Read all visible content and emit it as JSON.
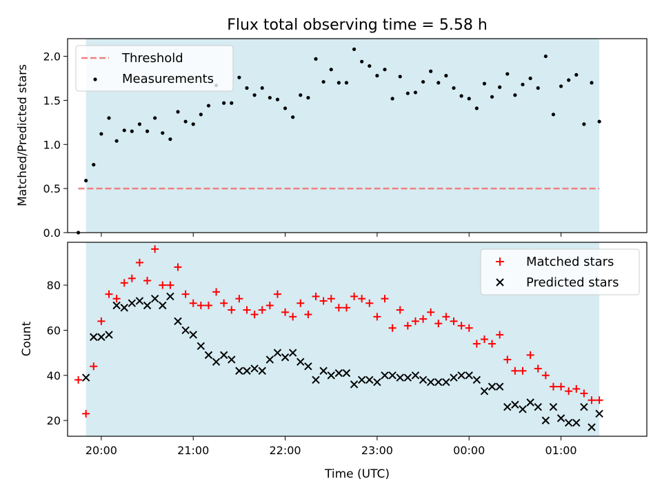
{
  "chart_data": [
    {
      "type": "scatter",
      "title": "Flux total observing time = 5.58 h",
      "ylabel": "Matched/Predicted stars",
      "xlabel": "",
      "xlim": [
        "19:38",
        "01:56"
      ],
      "ylim": [
        0,
        2.2
      ],
      "yticks": [
        0.0,
        0.5,
        1.0,
        1.5,
        2.0
      ],
      "ytick_labels": [
        "0.0",
        "0.5",
        "1.0",
        "1.5",
        "2.0"
      ],
      "xticks": [
        "20:00",
        "21:00",
        "22:00",
        "23:00",
        "00:00",
        "01:00"
      ],
      "shaded_span": [
        "19:50",
        "01:25"
      ],
      "shade_color": "#add8e6",
      "legend": {
        "position": "top-left",
        "entries": [
          "Threshold",
          "Measurements"
        ]
      },
      "threshold": {
        "name": "Threshold",
        "value": 0.5,
        "x_range": [
          "19:45",
          "01:25"
        ],
        "color": "#f08080",
        "style": "dashed"
      },
      "series": [
        {
          "name": "Measurements",
          "marker": "dot",
          "color": "#000000",
          "x": [
            "19:45",
            "19:50",
            "19:55",
            "20:00",
            "20:05",
            "20:10",
            "20:15",
            "20:20",
            "20:25",
            "20:30",
            "20:35",
            "20:40",
            "20:45",
            "20:50",
            "20:55",
            "21:00",
            "21:05",
            "21:10",
            "21:15",
            "21:20",
            "21:25",
            "21:30",
            "21:35",
            "21:40",
            "21:45",
            "21:50",
            "21:55",
            "22:00",
            "22:05",
            "22:10",
            "22:15",
            "22:20",
            "22:25",
            "22:30",
            "22:35",
            "22:40",
            "22:45",
            "22:50",
            "22:55",
            "23:00",
            "23:05",
            "23:10",
            "23:15",
            "23:20",
            "23:25",
            "23:30",
            "23:35",
            "23:40",
            "23:45",
            "23:50",
            "23:55",
            "00:00",
            "00:05",
            "00:10",
            "00:15",
            "00:20",
            "00:25",
            "00:30",
            "00:35",
            "00:40",
            "00:45",
            "00:50",
            "00:55",
            "01:00",
            "01:05",
            "01:10",
            "01:15",
            "01:20",
            "01:25"
          ],
          "y": [
            0.0,
            0.59,
            0.77,
            1.12,
            1.3,
            1.04,
            1.16,
            1.15,
            1.23,
            1.15,
            1.3,
            1.13,
            1.06,
            1.37,
            1.26,
            1.23,
            1.34,
            1.44,
            1.67,
            1.47,
            1.47,
            1.76,
            1.64,
            1.56,
            1.64,
            1.53,
            1.51,
            1.41,
            1.31,
            1.56,
            1.53,
            1.97,
            1.71,
            1.85,
            1.7,
            1.7,
            2.08,
            1.94,
            1.89,
            1.78,
            1.85,
            1.52,
            1.77,
            1.58,
            1.59,
            1.71,
            1.83,
            1.7,
            1.78,
            1.64,
            1.55,
            1.52,
            1.41,
            1.69,
            1.54,
            1.65,
            1.8,
            1.56,
            1.68,
            1.75,
            1.64,
            2.0,
            1.34,
            1.66,
            1.73,
            1.79,
            1.23,
            1.7,
            1.26
          ]
        }
      ]
    },
    {
      "type": "scatter",
      "title": "",
      "ylabel": "Count",
      "xlabel": "Time (UTC)",
      "xlim": [
        "19:38",
        "01:56"
      ],
      "ylim": [
        13,
        99
      ],
      "yticks": [
        20,
        40,
        60,
        80
      ],
      "ytick_labels": [
        "20",
        "40",
        "60",
        "80"
      ],
      "xticks": [
        "20:00",
        "21:00",
        "22:00",
        "23:00",
        "00:00",
        "01:00"
      ],
      "shaded_span": [
        "19:50",
        "01:25"
      ],
      "shade_color": "#add8e6",
      "legend": {
        "position": "top-right",
        "entries": [
          "Matched stars",
          "Predicted stars"
        ]
      },
      "series": [
        {
          "name": "Matched stars",
          "marker": "plus",
          "color": "#ff0000",
          "x": [
            "19:45",
            "19:50",
            "19:55",
            "20:00",
            "20:05",
            "20:10",
            "20:15",
            "20:20",
            "20:25",
            "20:30",
            "20:35",
            "20:40",
            "20:45",
            "20:50",
            "20:55",
            "21:00",
            "21:05",
            "21:10",
            "21:15",
            "21:20",
            "21:25",
            "21:30",
            "21:35",
            "21:40",
            "21:45",
            "21:50",
            "21:55",
            "22:00",
            "22:05",
            "22:10",
            "22:15",
            "22:20",
            "22:25",
            "22:30",
            "22:35",
            "22:40",
            "22:45",
            "22:50",
            "22:55",
            "23:00",
            "23:05",
            "23:10",
            "23:15",
            "23:20",
            "23:25",
            "23:30",
            "23:35",
            "23:40",
            "23:45",
            "23:50",
            "23:55",
            "00:00",
            "00:05",
            "00:10",
            "00:15",
            "00:20",
            "00:25",
            "00:30",
            "00:35",
            "00:40",
            "00:45",
            "00:50",
            "00:55",
            "01:00",
            "01:05",
            "01:10",
            "01:15",
            "01:20",
            "01:25"
          ],
          "y": [
            38,
            23,
            44,
            64,
            76,
            74,
            81,
            83,
            90,
            82,
            96,
            80,
            80,
            88,
            76,
            72,
            71,
            71,
            77,
            72,
            69,
            74,
            69,
            67,
            69,
            71,
            76,
            68,
            66,
            72,
            67,
            75,
            73,
            74,
            70,
            70,
            75,
            74,
            72,
            66,
            74,
            61,
            69,
            62,
            64,
            65,
            68,
            63,
            66,
            64,
            62,
            61,
            54,
            56,
            54,
            58,
            47,
            42,
            42,
            49,
            43,
            40,
            35,
            35,
            33,
            34,
            32,
            29,
            29
          ]
        },
        {
          "name": "Predicted stars",
          "marker": "x",
          "color": "#000000",
          "x": [
            "19:50",
            "19:55",
            "20:00",
            "20:05",
            "20:10",
            "20:15",
            "20:20",
            "20:25",
            "20:30",
            "20:35",
            "20:40",
            "20:45",
            "20:50",
            "20:55",
            "21:00",
            "21:05",
            "21:10",
            "21:15",
            "21:20",
            "21:25",
            "21:30",
            "21:35",
            "21:40",
            "21:45",
            "21:50",
            "21:55",
            "22:00",
            "22:05",
            "22:10",
            "22:15",
            "22:20",
            "22:25",
            "22:30",
            "22:35",
            "22:40",
            "22:45",
            "22:50",
            "22:55",
            "23:00",
            "23:05",
            "23:10",
            "23:15",
            "23:20",
            "23:25",
            "23:30",
            "23:35",
            "23:40",
            "23:45",
            "23:50",
            "23:55",
            "00:00",
            "00:05",
            "00:10",
            "00:15",
            "00:20",
            "00:25",
            "00:30",
            "00:35",
            "00:40",
            "00:45",
            "00:50",
            "00:55",
            "01:00",
            "01:05",
            "01:10",
            "01:15",
            "01:20",
            "01:25"
          ],
          "y": [
            39,
            57,
            57,
            58,
            71,
            70,
            72,
            73,
            71,
            74,
            71,
            75,
            64,
            60,
            58,
            53,
            49,
            46,
            49,
            47,
            42,
            42,
            43,
            42,
            47,
            50,
            48,
            50,
            46,
            44,
            38,
            42,
            40,
            41,
            41,
            36,
            38,
            38,
            37,
            40,
            40,
            39,
            39,
            40,
            38,
            37,
            37,
            37,
            39,
            40,
            40,
            38,
            33,
            35,
            35,
            26,
            27,
            25,
            28,
            26,
            20,
            26,
            21,
            19,
            19,
            26,
            17,
            23
          ]
        }
      ]
    }
  ]
}
